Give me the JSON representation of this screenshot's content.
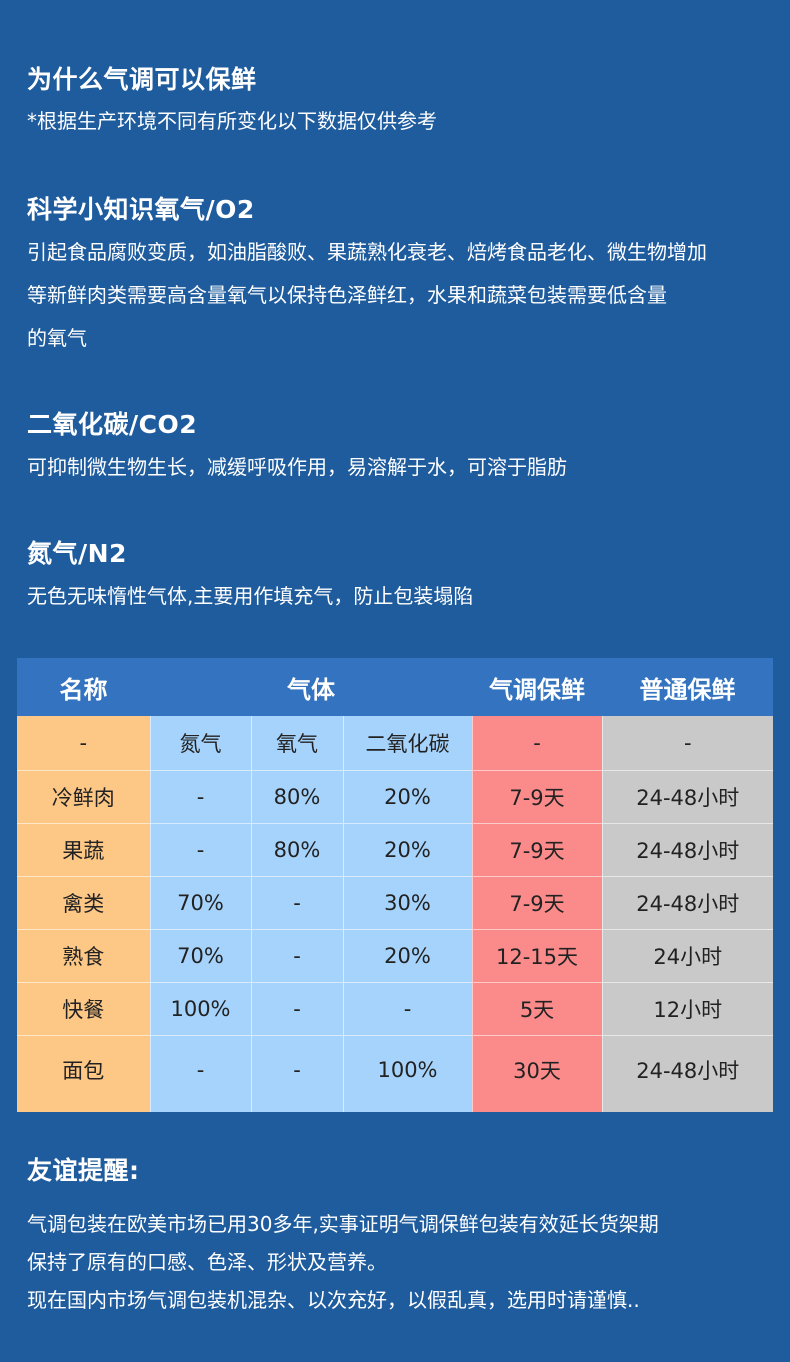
{
  "why": {
    "title": "为什么气调可以保鲜",
    "note": "*根据生产环境不同有所变化以下数据仅供参考"
  },
  "o2": {
    "title": "科学小知识氧气/O2",
    "lines": [
      "引起食品腐败变质，如油脂酸败、果蔬熟化衰老、焙烤食品老化、微生物增加",
      "等新鲜肉类需要高含量氧气以保持色泽鲜红，水果和蔬菜包装需要低含量",
      "的氧气"
    ]
  },
  "co2": {
    "title": "二氧化碳/CO2",
    "text": "可抑制微生物生长，减缓呼吸作用，易溶解于水，可溶于脂肪"
  },
  "n2": {
    "title": "氮气/N2",
    "text": "无色无味惰性气体,主要用作填充气，防止包装塌陷"
  },
  "table": {
    "headers": {
      "name": "名称",
      "gas": "气体",
      "modified": "气调保鲜",
      "normal": "普通保鲜"
    },
    "sub": [
      "-",
      "氮气",
      "氧气",
      "二氧化碳",
      "-",
      "-"
    ],
    "rows": [
      [
        "冷鲜肉",
        "-",
        "80%",
        "20%",
        "7-9天",
        "24-48小时"
      ],
      [
        "果蔬",
        "-",
        "80%",
        "20%",
        "7-9天",
        "24-48小时"
      ],
      [
        "禽类",
        "70%",
        "-",
        "30%",
        "7-9天",
        "24-48小时"
      ],
      [
        "熟食",
        "70%",
        "-",
        "20%",
        "12-15天",
        "24小时"
      ],
      [
        "快餐",
        "100%",
        "-",
        "-",
        "5天",
        "12小时"
      ],
      [
        "面包",
        "-",
        "-",
        "100%",
        "30天",
        "24-48小时"
      ]
    ]
  },
  "tips": {
    "title": "友谊提醒:",
    "lines": [
      "气调包装在欧美市场已用30多年,实事证明气调保鲜包装有效延长货架期",
      "保持了原有的口感、色泽、形状及营养。",
      "现在国内市场气调包装机混杂、以次充好，以假乱真，选用时请谨慎.."
    ]
  },
  "colors": {
    "background": "#1f5c9e",
    "header": "#3473bf",
    "name_col": "#fdc786",
    "gas_col": "#a6d3fb",
    "modified_col": "#fb8b8b",
    "normal_col": "#c9c9c9"
  }
}
